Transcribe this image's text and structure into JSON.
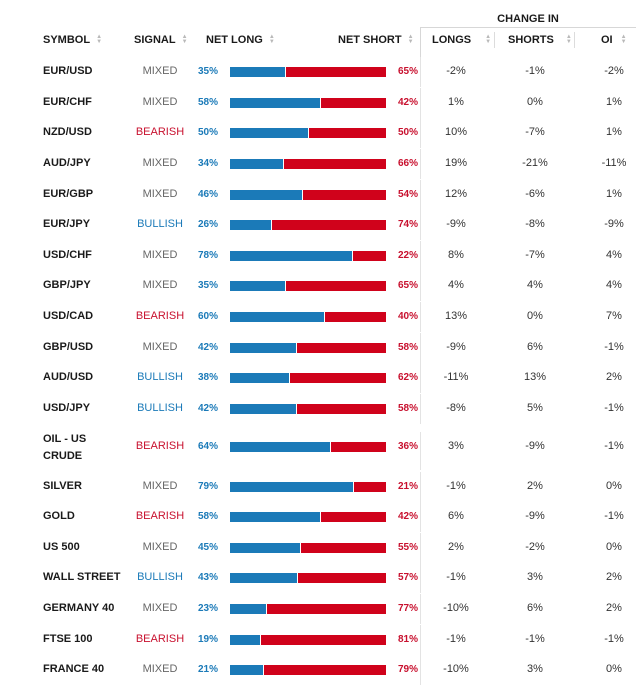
{
  "header": {
    "change_in": "CHANGE IN",
    "symbol": "SYMBOL",
    "signal": "SIGNAL",
    "net_long": "NET LONG",
    "net_short": "NET SHORT",
    "longs": "LONGS",
    "shorts": "SHORTS",
    "oi": "OI"
  },
  "colors": {
    "long": "#1b7ab8",
    "short": "#d0021b",
    "bearish": "#c8102e",
    "bullish": "#1b7ab8",
    "mixed": "#666666"
  },
  "rows": [
    {
      "symbol": "EUR/USD",
      "signal": "MIXED",
      "net_long": "35%",
      "net_short": "65%",
      "long_fraction": 0.35,
      "longs": "-2%",
      "shorts": "-1%",
      "oi": "-2%"
    },
    {
      "symbol": "EUR/CHF",
      "signal": "MIXED",
      "net_long": "58%",
      "net_short": "42%",
      "long_fraction": 0.58,
      "longs": "1%",
      "shorts": "0%",
      "oi": "1%"
    },
    {
      "symbol": "NZD/USD",
      "signal": "BEARISH",
      "net_long": "50%",
      "net_short": "50%",
      "long_fraction": 0.5,
      "longs": "10%",
      "shorts": "-7%",
      "oi": "1%"
    },
    {
      "symbol": "AUD/JPY",
      "signal": "MIXED",
      "net_long": "34%",
      "net_short": "66%",
      "long_fraction": 0.34,
      "longs": "19%",
      "shorts": "-21%",
      "oi": "-11%"
    },
    {
      "symbol": "EUR/GBP",
      "signal": "MIXED",
      "net_long": "46%",
      "net_short": "54%",
      "long_fraction": 0.46,
      "longs": "12%",
      "shorts": "-6%",
      "oi": "1%"
    },
    {
      "symbol": "EUR/JPY",
      "signal": "BULLISH",
      "net_long": "26%",
      "net_short": "74%",
      "long_fraction": 0.26,
      "longs": "-9%",
      "shorts": "-8%",
      "oi": "-9%"
    },
    {
      "symbol": "USD/CHF",
      "signal": "MIXED",
      "net_long": "78%",
      "net_short": "22%",
      "long_fraction": 0.78,
      "longs": "8%",
      "shorts": "-7%",
      "oi": "4%"
    },
    {
      "symbol": "GBP/JPY",
      "signal": "MIXED",
      "net_long": "35%",
      "net_short": "65%",
      "long_fraction": 0.35,
      "longs": "4%",
      "shorts": "4%",
      "oi": "4%"
    },
    {
      "symbol": "USD/CAD",
      "signal": "BEARISH",
      "net_long": "60%",
      "net_short": "40%",
      "long_fraction": 0.6,
      "longs": "13%",
      "shorts": "0%",
      "oi": "7%"
    },
    {
      "symbol": "GBP/USD",
      "signal": "MIXED",
      "net_long": "42%",
      "net_short": "58%",
      "long_fraction": 0.42,
      "longs": "-9%",
      "shorts": "6%",
      "oi": "-1%"
    },
    {
      "symbol": "AUD/USD",
      "signal": "BULLISH",
      "net_long": "38%",
      "net_short": "62%",
      "long_fraction": 0.38,
      "longs": "-11%",
      "shorts": "13%",
      "oi": "2%"
    },
    {
      "symbol": "USD/JPY",
      "signal": "BULLISH",
      "net_long": "42%",
      "net_short": "58%",
      "long_fraction": 0.42,
      "longs": "-8%",
      "shorts": "5%",
      "oi": "-1%"
    },
    {
      "symbol": "OIL - US CRUDE",
      "signal": "BEARISH",
      "net_long": "64%",
      "net_short": "36%",
      "long_fraction": 0.64,
      "longs": "3%",
      "shorts": "-9%",
      "oi": "-1%"
    },
    {
      "symbol": "SILVER",
      "signal": "MIXED",
      "net_long": "79%",
      "net_short": "21%",
      "long_fraction": 0.79,
      "longs": "-1%",
      "shorts": "2%",
      "oi": "0%"
    },
    {
      "symbol": "GOLD",
      "signal": "BEARISH",
      "net_long": "58%",
      "net_short": "42%",
      "long_fraction": 0.58,
      "longs": "6%",
      "shorts": "-9%",
      "oi": "-1%"
    },
    {
      "symbol": "US 500",
      "signal": "MIXED",
      "net_long": "45%",
      "net_short": "55%",
      "long_fraction": 0.45,
      "longs": "2%",
      "shorts": "-2%",
      "oi": "0%"
    },
    {
      "symbol": "WALL STREET",
      "signal": "BULLISH",
      "net_long": "43%",
      "net_short": "57%",
      "long_fraction": 0.43,
      "longs": "-1%",
      "shorts": "3%",
      "oi": "2%"
    },
    {
      "symbol": "GERMANY 40",
      "signal": "MIXED",
      "net_long": "23%",
      "net_short": "77%",
      "long_fraction": 0.23,
      "longs": "-10%",
      "shorts": "6%",
      "oi": "2%"
    },
    {
      "symbol": "FTSE 100",
      "signal": "BEARISH",
      "net_long": "19%",
      "net_short": "81%",
      "long_fraction": 0.19,
      "longs": "-1%",
      "shorts": "-1%",
      "oi": "-1%"
    },
    {
      "symbol": "FRANCE 40",
      "signal": "MIXED",
      "net_long": "21%",
      "net_short": "79%",
      "long_fraction": 0.21,
      "longs": "-10%",
      "shorts": "3%",
      "oi": "0%"
    }
  ]
}
